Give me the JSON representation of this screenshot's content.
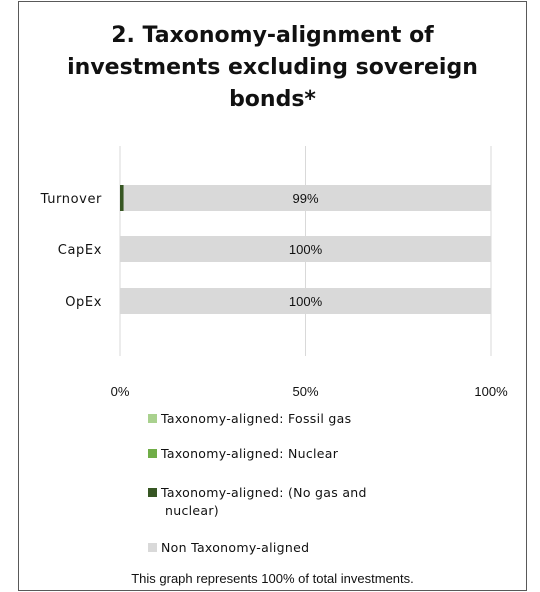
{
  "chart_data": {
    "type": "bar",
    "orientation": "horizontal",
    "stacked": true,
    "title_lines": [
      "2. Taxonomy-alignment of",
      "investments excluding sovereign",
      "bonds*"
    ],
    "categories": [
      "Turnover",
      "CapEx",
      "OpEx"
    ],
    "series": [
      {
        "name": "Taxonomy-aligned: Fossil gas",
        "color": "#a9d18e",
        "values": [
          0,
          0,
          0
        ]
      },
      {
        "name": "Taxonomy-aligned: Nuclear",
        "color": "#70ad47",
        "values": [
          0,
          0,
          0
        ]
      },
      {
        "name": "Taxonomy-aligned: (No gas and nuclear)",
        "color": "#375623",
        "values": [
          1,
          0,
          0
        ]
      },
      {
        "name": "Non Taxonomy-aligned",
        "color": "#d9d9d9",
        "values": [
          99,
          100,
          100
        ]
      }
    ],
    "data_labels": [
      "99%",
      "100%",
      "100%"
    ],
    "xlim": [
      0,
      100
    ],
    "x_ticks": [
      0,
      50,
      100
    ],
    "x_tick_labels": [
      "0%",
      "50%",
      "100%"
    ],
    "grid": "vertical",
    "legend_position": "bottom"
  },
  "legend": {
    "fossil_gas": "Taxonomy-aligned: Fossil gas",
    "nuclear": "Taxonomy-aligned: Nuclear",
    "no_gas_line1": "Taxonomy-aligned: (No gas and",
    "no_gas_line2": "nuclear)",
    "non_aligned": "Non Taxonomy-aligned"
  },
  "footnote": "This graph represents 100% of total investments."
}
